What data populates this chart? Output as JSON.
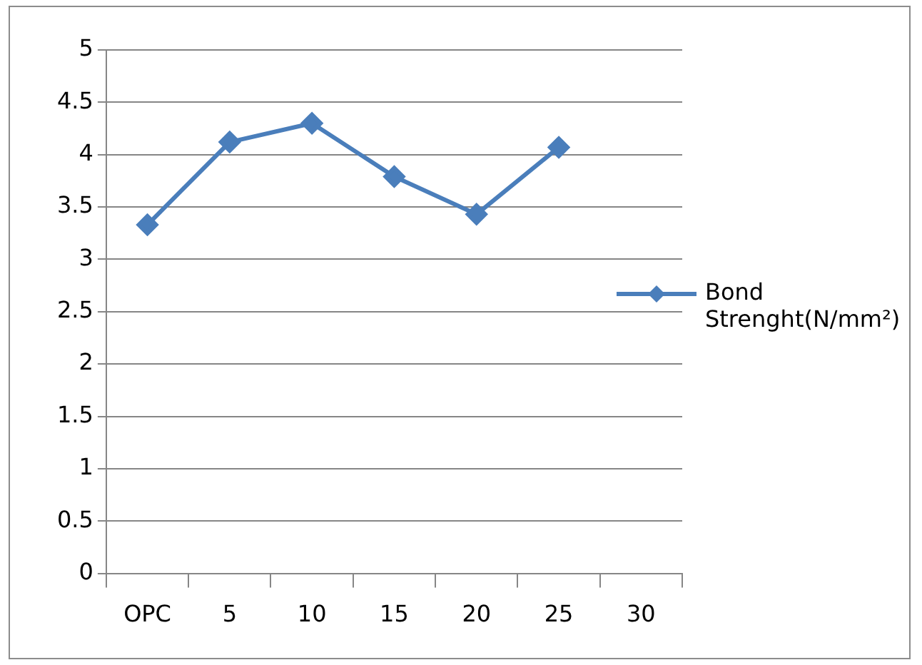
{
  "chart_data": {
    "type": "line",
    "categories": [
      "OPC",
      "5",
      "10",
      "15",
      "20",
      "25",
      "30"
    ],
    "series": [
      {
        "name": "Bond Strenght(N/mm²)",
        "color": "#4a7ebb",
        "values": [
          3.33,
          4.12,
          4.3,
          3.79,
          3.43,
          4.07,
          null
        ]
      }
    ],
    "ylim": [
      0,
      5
    ],
    "yticks": [
      0,
      0.5,
      1,
      1.5,
      2,
      2.5,
      3,
      3.5,
      4,
      4.5,
      5
    ],
    "grid": "y",
    "legend": "right",
    "marker": "diamond",
    "line_style": "solid"
  }
}
